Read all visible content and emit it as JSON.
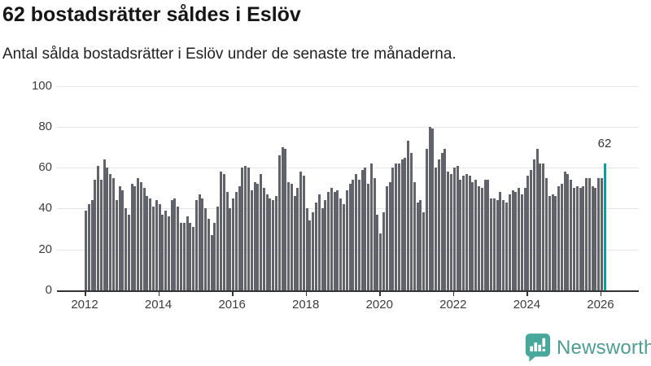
{
  "title": "62 bostadsrätter såldes i Eslöv",
  "subtitle": "Antal sålda bostadsrätter i Eslöv under de senaste tre månaderna.",
  "branding": {
    "logo_text": "Newsworthy",
    "logo_icon": "bar-chart-speech-bubble-icon"
  },
  "colors": {
    "bar": "#62626a",
    "highlight_bar": "#0a9e9e",
    "grid": "#e4e4e4",
    "axis": "#333333",
    "brand_icon": "#47a89b",
    "brand_text": "#4f9c93"
  },
  "chart_data": {
    "type": "bar",
    "title": "62 bostadsrätter såldes i Eslöv",
    "subtitle": "Antal sålda bostadsrätter i Eslöv under de senaste tre månaderna.",
    "xlabel": "",
    "ylabel": "",
    "ylim": [
      0,
      100
    ],
    "y_ticks": [
      0,
      20,
      40,
      60,
      80,
      100
    ],
    "x_tick_labels": [
      "2012",
      "2014",
      "2016",
      "2018",
      "2020",
      "2022",
      "2024",
      "2026"
    ],
    "grid": true,
    "legend": false,
    "start_month": "2012-01",
    "end_month": "2026-02",
    "highlight_last_bar": true,
    "last_value_label": "62",
    "values": [
      39,
      42,
      44,
      54,
      61,
      54,
      64,
      60,
      57,
      55,
      44,
      51,
      49,
      40,
      37,
      52,
      51,
      55,
      53,
      50,
      46,
      45,
      41,
      44,
      42,
      37,
      39,
      36,
      44,
      45,
      41,
      33,
      33,
      36,
      33,
      31,
      44,
      47,
      45,
      40,
      35,
      27,
      33,
      41,
      58,
      57,
      48,
      40,
      45,
      48,
      51,
      60,
      61,
      60,
      49,
      53,
      52,
      57,
      50,
      47,
      45,
      44,
      46,
      66,
      70,
      69,
      53,
      52,
      46,
      50,
      58,
      56,
      40,
      34,
      38,
      43,
      47,
      40,
      44,
      48,
      50,
      48,
      49,
      45,
      42,
      49,
      52,
      54,
      57,
      54,
      59,
      60,
      52,
      62,
      55,
      37,
      28,
      38,
      51,
      53,
      60,
      62,
      62,
      64,
      65,
      73,
      67,
      53,
      43,
      44,
      38,
      69,
      80,
      79,
      60,
      64,
      67,
      69,
      58,
      57,
      60,
      61,
      54,
      56,
      57,
      56,
      53,
      54,
      51,
      50,
      54,
      54,
      45,
      45,
      44,
      48,
      44,
      43,
      47,
      49,
      48,
      50,
      47,
      50,
      56,
      59,
      64,
      69,
      62,
      62,
      55,
      46,
      47,
      46,
      51,
      52,
      58,
      57,
      54,
      50,
      51,
      50,
      51,
      55,
      55,
      51,
      50,
      55,
      55,
      62
    ]
  }
}
